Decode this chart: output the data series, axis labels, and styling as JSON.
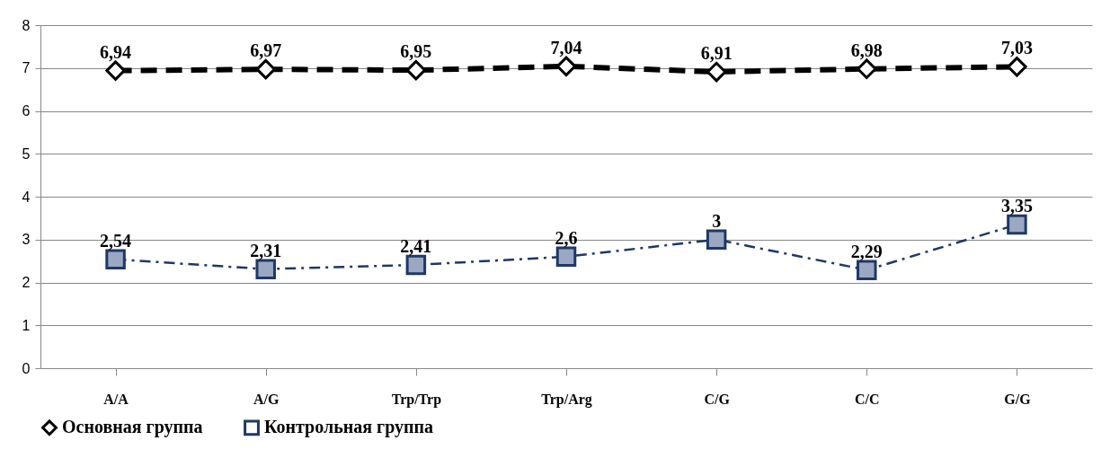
{
  "chart_data": {
    "type": "line",
    "categories": [
      "A/A",
      "A/G",
      "Trp/Trp",
      "Trp/Arg",
      "C/G",
      "C/C",
      "G/G"
    ],
    "series": [
      {
        "name": "Основная группа",
        "color": "#000000",
        "values": [
          6.94,
          6.97,
          6.95,
          7.04,
          6.91,
          6.98,
          7.03
        ],
        "value_labels": [
          "6,94",
          "6,97",
          "6,95",
          "7,04",
          "6,91",
          "6,98",
          "7,03"
        ],
        "marker": "diamond",
        "line_style": "dashed"
      },
      {
        "name": "Контрольная группа",
        "color": "#1f3864",
        "values": [
          2.54,
          2.31,
          2.41,
          2.6,
          3,
          2.29,
          3.35
        ],
        "value_labels": [
          "2,54",
          "2,31",
          "2,41",
          "2,6",
          "3",
          "2,29",
          "3,35"
        ],
        "marker": "square",
        "line_style": "dashdot"
      }
    ],
    "ylim": [
      0,
      8
    ],
    "yticks": [
      0,
      1,
      2,
      3,
      4,
      5,
      6,
      7,
      8
    ],
    "grid": "y",
    "legend": "bottom"
  }
}
